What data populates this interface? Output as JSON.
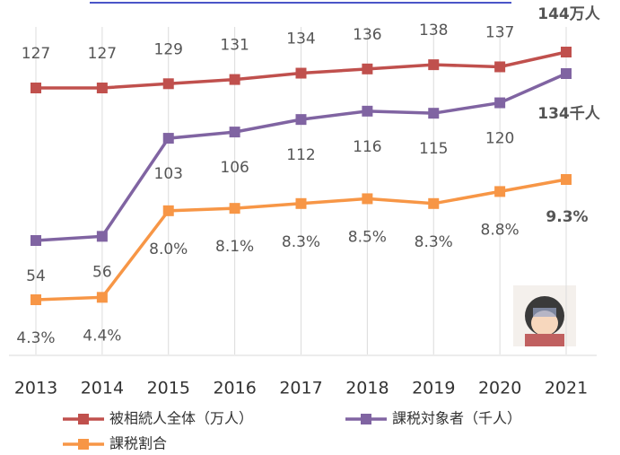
{
  "chart_data": {
    "type": "line",
    "categories": [
      "2013",
      "2014",
      "2015",
      "2016",
      "2017",
      "2018",
      "2019",
      "2020",
      "2021"
    ],
    "series": [
      {
        "name": "被相続人全体（万人）",
        "color": "#c0504d",
        "values": [
          127,
          127,
          129,
          131,
          134,
          136,
          138,
          137,
          144
        ],
        "value_labels": [
          "127",
          "127",
          "129",
          "131",
          "134",
          "136",
          "138",
          "137",
          "144万人"
        ]
      },
      {
        "name": "課税対象者（千人）",
        "color": "#8064a2",
        "values": [
          54,
          56,
          103,
          106,
          112,
          116,
          115,
          120,
          134
        ],
        "value_labels": [
          "54",
          "56",
          "103",
          "106",
          "112",
          "116",
          "115",
          "120",
          "134千人"
        ]
      },
      {
        "name": "課税割合",
        "color": "#f79646",
        "values": [
          4.3,
          4.4,
          8.0,
          8.1,
          8.3,
          8.5,
          8.3,
          8.8,
          9.3
        ],
        "value_labels": [
          "4.3%",
          "4.4%",
          "8.0%",
          "8.1%",
          "8.3%",
          "8.5%",
          "8.3%",
          "8.8%",
          "9.3%"
        ]
      }
    ]
  }
}
